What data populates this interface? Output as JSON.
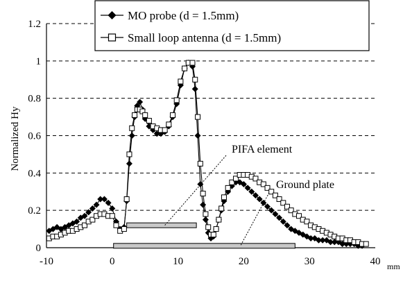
{
  "chart_data": {
    "type": "line",
    "ylabel": "Normalized Hy",
    "x_unit": "mm",
    "xlim": [
      -10,
      40
    ],
    "ylim": [
      0,
      1.2
    ],
    "x_ticks": [
      "-10",
      "0",
      "10",
      "20",
      "30",
      "40"
    ],
    "y_ticks": [
      "0",
      "0.2",
      "0.4",
      "0.6",
      "0.8",
      "1",
      "1.2"
    ],
    "grid": "horizontal dashed",
    "legend_position": "top-right",
    "series": [
      {
        "name": "MO probe (d = 1.5mm)",
        "marker": "filled-diamond",
        "color": "#000000",
        "points": [
          [
            -9.6,
            0.09
          ],
          [
            -9.0,
            0.1
          ],
          [
            -8.4,
            0.11
          ],
          [
            -7.8,
            0.1
          ],
          [
            -7.2,
            0.11
          ],
          [
            -6.6,
            0.12
          ],
          [
            -6.0,
            0.13
          ],
          [
            -5.4,
            0.14
          ],
          [
            -4.8,
            0.16
          ],
          [
            -4.2,
            0.17
          ],
          [
            -3.6,
            0.19
          ],
          [
            -3.0,
            0.21
          ],
          [
            -2.4,
            0.23
          ],
          [
            -1.8,
            0.26
          ],
          [
            -1.2,
            0.26
          ],
          [
            -0.6,
            0.24
          ],
          [
            0.0,
            0.21
          ],
          [
            0.6,
            0.14
          ],
          [
            1.2,
            0.1
          ],
          [
            1.8,
            0.11
          ],
          [
            2.2,
            0.25
          ],
          [
            2.6,
            0.45
          ],
          [
            3.0,
            0.6
          ],
          [
            3.4,
            0.7
          ],
          [
            3.8,
            0.76
          ],
          [
            4.2,
            0.78
          ],
          [
            4.6,
            0.74
          ],
          [
            5.0,
            0.69
          ],
          [
            5.6,
            0.65
          ],
          [
            6.2,
            0.63
          ],
          [
            6.8,
            0.61
          ],
          [
            7.4,
            0.61
          ],
          [
            8.0,
            0.62
          ],
          [
            8.6,
            0.65
          ],
          [
            9.2,
            0.7
          ],
          [
            9.8,
            0.77
          ],
          [
            10.4,
            0.87
          ],
          [
            11.0,
            0.96
          ],
          [
            11.6,
            0.99
          ],
          [
            12.2,
            0.97
          ],
          [
            12.6,
            0.85
          ],
          [
            13.0,
            0.6
          ],
          [
            13.4,
            0.34
          ],
          [
            13.8,
            0.23
          ],
          [
            14.2,
            0.15
          ],
          [
            14.6,
            0.08
          ],
          [
            15.0,
            0.05
          ],
          [
            15.4,
            0.06
          ],
          [
            15.8,
            0.1
          ],
          [
            16.2,
            0.15
          ],
          [
            16.6,
            0.2
          ],
          [
            17.0,
            0.25
          ],
          [
            17.6,
            0.3
          ],
          [
            18.2,
            0.33
          ],
          [
            18.8,
            0.35
          ],
          [
            19.4,
            0.35
          ],
          [
            20.0,
            0.34
          ],
          [
            20.6,
            0.32
          ],
          [
            21.2,
            0.3
          ],
          [
            21.8,
            0.28
          ],
          [
            22.4,
            0.26
          ],
          [
            23.0,
            0.24
          ],
          [
            23.6,
            0.22
          ],
          [
            24.2,
            0.2
          ],
          [
            24.8,
            0.18
          ],
          [
            25.4,
            0.16
          ],
          [
            26.0,
            0.14
          ],
          [
            26.6,
            0.12
          ],
          [
            27.2,
            0.1
          ],
          [
            27.8,
            0.09
          ],
          [
            28.4,
            0.08
          ],
          [
            29.0,
            0.07
          ],
          [
            29.6,
            0.06
          ],
          [
            30.2,
            0.05
          ],
          [
            30.8,
            0.05
          ],
          [
            31.4,
            0.04
          ],
          [
            32.0,
            0.04
          ],
          [
            32.6,
            0.04
          ],
          [
            33.2,
            0.03
          ],
          [
            33.8,
            0.03
          ],
          [
            34.4,
            0.03
          ],
          [
            35.0,
            0.02
          ],
          [
            35.6,
            0.02
          ],
          [
            36.2,
            0.02
          ],
          [
            36.8,
            0.02
          ],
          [
            37.4,
            0.01
          ],
          [
            38.0,
            0.01
          ]
        ]
      },
      {
        "name": "Small loop antenna (d = 1.5mm)",
        "marker": "open-square",
        "color": "#000000",
        "points": [
          [
            -9.6,
            0.05
          ],
          [
            -9.0,
            0.06
          ],
          [
            -8.4,
            0.06
          ],
          [
            -7.8,
            0.07
          ],
          [
            -7.2,
            0.08
          ],
          [
            -6.6,
            0.09
          ],
          [
            -6.0,
            0.09
          ],
          [
            -5.4,
            0.1
          ],
          [
            -4.8,
            0.11
          ],
          [
            -4.2,
            0.12
          ],
          [
            -3.6,
            0.14
          ],
          [
            -3.0,
            0.15
          ],
          [
            -2.4,
            0.17
          ],
          [
            -1.8,
            0.18
          ],
          [
            -1.2,
            0.18
          ],
          [
            -0.6,
            0.17
          ],
          [
            0.0,
            0.17
          ],
          [
            0.6,
            0.12
          ],
          [
            1.2,
            0.09
          ],
          [
            1.8,
            0.1
          ],
          [
            2.2,
            0.26
          ],
          [
            2.6,
            0.5
          ],
          [
            3.0,
            0.64
          ],
          [
            3.4,
            0.71
          ],
          [
            3.8,
            0.74
          ],
          [
            4.2,
            0.74
          ],
          [
            4.6,
            0.73
          ],
          [
            5.0,
            0.71
          ],
          [
            5.6,
            0.68
          ],
          [
            6.2,
            0.65
          ],
          [
            6.8,
            0.64
          ],
          [
            7.4,
            0.63
          ],
          [
            8.0,
            0.63
          ],
          [
            8.6,
            0.66
          ],
          [
            9.2,
            0.71
          ],
          [
            9.8,
            0.79
          ],
          [
            10.4,
            0.89
          ],
          [
            11.0,
            0.96
          ],
          [
            11.6,
            0.99
          ],
          [
            12.2,
            0.99
          ],
          [
            12.6,
            0.9
          ],
          [
            13.0,
            0.7
          ],
          [
            13.4,
            0.45
          ],
          [
            13.8,
            0.29
          ],
          [
            14.2,
            0.18
          ],
          [
            14.6,
            0.11
          ],
          [
            15.0,
            0.07
          ],
          [
            15.4,
            0.07
          ],
          [
            15.8,
            0.1
          ],
          [
            16.2,
            0.15
          ],
          [
            16.6,
            0.21
          ],
          [
            17.0,
            0.27
          ],
          [
            17.6,
            0.32
          ],
          [
            18.2,
            0.35
          ],
          [
            18.8,
            0.37
          ],
          [
            19.4,
            0.39
          ],
          [
            20.0,
            0.39
          ],
          [
            20.6,
            0.39
          ],
          [
            21.2,
            0.38
          ],
          [
            21.8,
            0.37
          ],
          [
            22.4,
            0.35
          ],
          [
            23.0,
            0.34
          ],
          [
            23.6,
            0.32
          ],
          [
            24.2,
            0.3
          ],
          [
            24.8,
            0.28
          ],
          [
            25.4,
            0.26
          ],
          [
            26.0,
            0.24
          ],
          [
            26.6,
            0.22
          ],
          [
            27.2,
            0.2
          ],
          [
            27.8,
            0.18
          ],
          [
            28.4,
            0.17
          ],
          [
            29.0,
            0.15
          ],
          [
            29.6,
            0.14
          ],
          [
            30.2,
            0.12
          ],
          [
            30.8,
            0.11
          ],
          [
            31.4,
            0.1
          ],
          [
            32.0,
            0.09
          ],
          [
            32.6,
            0.08
          ],
          [
            33.2,
            0.07
          ],
          [
            33.8,
            0.06
          ],
          [
            34.4,
            0.05
          ],
          [
            35.0,
            0.05
          ],
          [
            35.6,
            0.04
          ],
          [
            36.2,
            0.04
          ],
          [
            36.8,
            0.03
          ],
          [
            37.4,
            0.03
          ],
          [
            38.0,
            0.02
          ],
          [
            38.6,
            0.02
          ]
        ]
      }
    ],
    "shapes": [
      {
        "name": "PIFA element",
        "label": "PIFA element",
        "x_start": 2.2,
        "x_end": 12.8,
        "y": 0.12
      },
      {
        "name": "Ground plate",
        "label": "Ground plate",
        "x_start": 0.2,
        "x_end": 27.8,
        "y": 0.01
      }
    ],
    "annotations": [
      {
        "text": "PIFA element",
        "x": 17.8,
        "y": 0.5,
        "leader_to": [
          8.0,
          0.12
        ]
      },
      {
        "text": "Ground plate",
        "x": 24.8,
        "y": 0.35,
        "leader_to": [
          19.5,
          0.01
        ]
      }
    ]
  }
}
